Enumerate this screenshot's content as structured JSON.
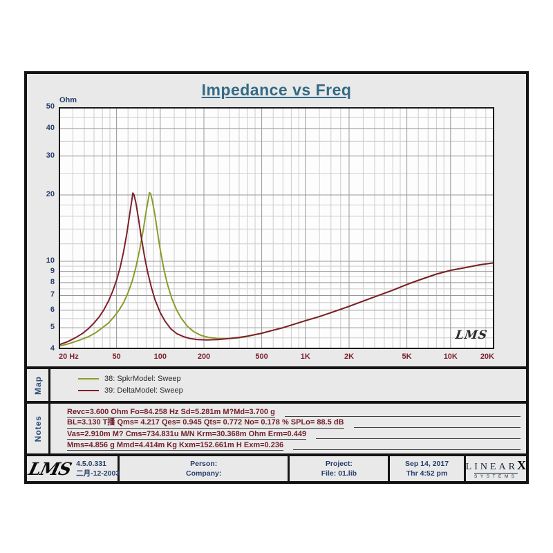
{
  "title": "Impedance vs Freq",
  "chart_data": {
    "type": "line",
    "title": "Impedance vs Freq",
    "xlabel": "",
    "ylabel": "Ohm",
    "x_axis": {
      "scale": "log",
      "min": 20,
      "max": 20000,
      "ticks": [
        {
          "v": 20,
          "label": "20 Hz"
        },
        {
          "v": 50,
          "label": "50"
        },
        {
          "v": 100,
          "label": "100"
        },
        {
          "v": 200,
          "label": "200"
        },
        {
          "v": 500,
          "label": "500"
        },
        {
          "v": 1000,
          "label": "1K"
        },
        {
          "v": 2000,
          "label": "2K"
        },
        {
          "v": 5000,
          "label": "5K"
        },
        {
          "v": 10000,
          "label": "10K"
        },
        {
          "v": 20000,
          "label": "20K"
        }
      ]
    },
    "y_axis": {
      "scale": "log",
      "min": 4,
      "max": 50,
      "ticks": [
        {
          "v": 50,
          "label": "50"
        },
        {
          "v": 40,
          "label": "40"
        },
        {
          "v": 30,
          "label": "30"
        },
        {
          "v": 20,
          "label": "20"
        },
        {
          "v": 10,
          "label": "10"
        },
        {
          "v": 9,
          "label": "9"
        },
        {
          "v": 8,
          "label": "8"
        },
        {
          "v": 7,
          "label": "7"
        },
        {
          "v": 6,
          "label": "6"
        },
        {
          "v": 5,
          "label": "5"
        },
        {
          "v": 4,
          "label": "4"
        }
      ]
    },
    "gridlines": {
      "x_major": [
        20,
        50,
        100,
        200,
        500,
        1000,
        2000,
        5000,
        10000,
        20000
      ],
      "x_minor": [
        25,
        30,
        35,
        40,
        45,
        60,
        70,
        80,
        90,
        125,
        150,
        175,
        250,
        300,
        350,
        400,
        450,
        600,
        700,
        800,
        900,
        1250,
        1500,
        1750,
        2500,
        3000,
        3500,
        4000,
        4500,
        6000,
        7000,
        8000,
        9000,
        12500,
        15000,
        17500
      ],
      "y_major": [
        4,
        5,
        6,
        7,
        8,
        9,
        10,
        20,
        30,
        40,
        50
      ],
      "y_minor": [
        4.5,
        5.5,
        6.5,
        7.5,
        8.5,
        9.5,
        12,
        14,
        16,
        18,
        25,
        35,
        45
      ]
    },
    "watermark": "LMS",
    "series": [
      {
        "name": "38: SpkrModel: Sweep",
        "color": "#8c9b2b",
        "points": [
          [
            20,
            4.12
          ],
          [
            24,
            4.25
          ],
          [
            28,
            4.4
          ],
          [
            32,
            4.55
          ],
          [
            36,
            4.75
          ],
          [
            40,
            5.0
          ],
          [
            44,
            5.25
          ],
          [
            48,
            5.6
          ],
          [
            52,
            6.0
          ],
          [
            56,
            6.5
          ],
          [
            60,
            7.2
          ],
          [
            64,
            8.1
          ],
          [
            68,
            9.4
          ],
          [
            72,
            11.2
          ],
          [
            76,
            13.6
          ],
          [
            80,
            16.8
          ],
          [
            83,
            19.3
          ],
          [
            84.3,
            20.5
          ],
          [
            86,
            20.2
          ],
          [
            88,
            19.0
          ],
          [
            92,
            16.2
          ],
          [
            96,
            13.4
          ],
          [
            100,
            11.3
          ],
          [
            106,
            9.2
          ],
          [
            112,
            7.9
          ],
          [
            120,
            6.8
          ],
          [
            130,
            6.0
          ],
          [
            140,
            5.5
          ],
          [
            155,
            5.05
          ],
          [
            170,
            4.8
          ],
          [
            190,
            4.62
          ],
          [
            215,
            4.52
          ],
          [
            250,
            4.47
          ],
          [
            300,
            4.47
          ],
          [
            350,
            4.5
          ],
          [
            400,
            4.57
          ],
          [
            500,
            4.72
          ],
          [
            600,
            4.87
          ],
          [
            700,
            5.0
          ],
          [
            850,
            5.2
          ],
          [
            1000,
            5.38
          ],
          [
            1250,
            5.62
          ],
          [
            1500,
            5.85
          ],
          [
            2000,
            6.25
          ],
          [
            2500,
            6.6
          ],
          [
            3000,
            6.9
          ],
          [
            4000,
            7.4
          ],
          [
            5000,
            7.85
          ],
          [
            6000,
            8.2
          ],
          [
            8000,
            8.75
          ],
          [
            10000,
            9.1
          ],
          [
            13000,
            9.4
          ],
          [
            16000,
            9.65
          ],
          [
            20000,
            9.85
          ]
        ]
      },
      {
        "name": "39: DeltaModel: Sweep",
        "color": "#7d1f2a",
        "points": [
          [
            20,
            4.18
          ],
          [
            23,
            4.32
          ],
          [
            26,
            4.5
          ],
          [
            29,
            4.7
          ],
          [
            32,
            4.95
          ],
          [
            35,
            5.25
          ],
          [
            38,
            5.6
          ],
          [
            41,
            6.05
          ],
          [
            44,
            6.6
          ],
          [
            47,
            7.3
          ],
          [
            50,
            8.2
          ],
          [
            53,
            9.4
          ],
          [
            56,
            11.1
          ],
          [
            59,
            13.5
          ],
          [
            62,
            16.8
          ],
          [
            64,
            19.3
          ],
          [
            64.8,
            20.4
          ],
          [
            66,
            20.0
          ],
          [
            68,
            18.4
          ],
          [
            71,
            15.5
          ],
          [
            74,
            12.9
          ],
          [
            78,
            10.5
          ],
          [
            82,
            8.9
          ],
          [
            87,
            7.6
          ],
          [
            92,
            6.7
          ],
          [
            100,
            5.85
          ],
          [
            108,
            5.35
          ],
          [
            118,
            4.95
          ],
          [
            130,
            4.7
          ],
          [
            145,
            4.55
          ],
          [
            160,
            4.47
          ],
          [
            180,
            4.42
          ],
          [
            210,
            4.4
          ],
          [
            250,
            4.42
          ],
          [
            300,
            4.47
          ],
          [
            350,
            4.52
          ],
          [
            400,
            4.58
          ],
          [
            500,
            4.72
          ],
          [
            600,
            4.87
          ],
          [
            700,
            5.0
          ],
          [
            850,
            5.2
          ],
          [
            1000,
            5.38
          ],
          [
            1250,
            5.62
          ],
          [
            1500,
            5.85
          ],
          [
            2000,
            6.25
          ],
          [
            2500,
            6.6
          ],
          [
            3000,
            6.9
          ],
          [
            4000,
            7.4
          ],
          [
            5000,
            7.85
          ],
          [
            6000,
            8.2
          ],
          [
            8000,
            8.75
          ],
          [
            10000,
            9.1
          ],
          [
            13000,
            9.4
          ],
          [
            16000,
            9.65
          ],
          [
            20000,
            9.85
          ]
        ]
      }
    ]
  },
  "map_panel": {
    "label": "Map",
    "entries": [
      {
        "text": "38: SpkrModel: Sweep",
        "color": "#8c9b2b"
      },
      {
        "text": "39: DeltaModel: Sweep",
        "color": "#7d1f2a"
      }
    ]
  },
  "notes_panel": {
    "label": "Notes",
    "lines": [
      "Revc=3.600 Ohm  Fo=84.258 Hz  Sd=5.281m M?Md=3.700 g",
      "BL=3.130 T播  Qms= 4.217  Qes= 0.945  Qts= 0.772  No= 0.178 %  SPLo= 88.5 dB",
      "Vas=2.910m M? Cms=734.831u M/N  Krm=30.368m Ohm  Erm=0.449",
      "Mms=4.856 g  Mmd=4.414m Kg  Kxm=152.661m H  Exm=0.236"
    ]
  },
  "footer": {
    "logo": "LMS",
    "version": "4.5.0.331",
    "version_date": "二月-12-2003",
    "person_label": "Person:",
    "company_label": "Company:",
    "project_label": "Project:",
    "file_label": "File: 01.lib",
    "date": "Sep 14, 2017",
    "time": "Thr  4:52 pm",
    "brand_linear": "LINEAR",
    "brand_x": "X",
    "brand_systems": "SYSTEMS"
  }
}
